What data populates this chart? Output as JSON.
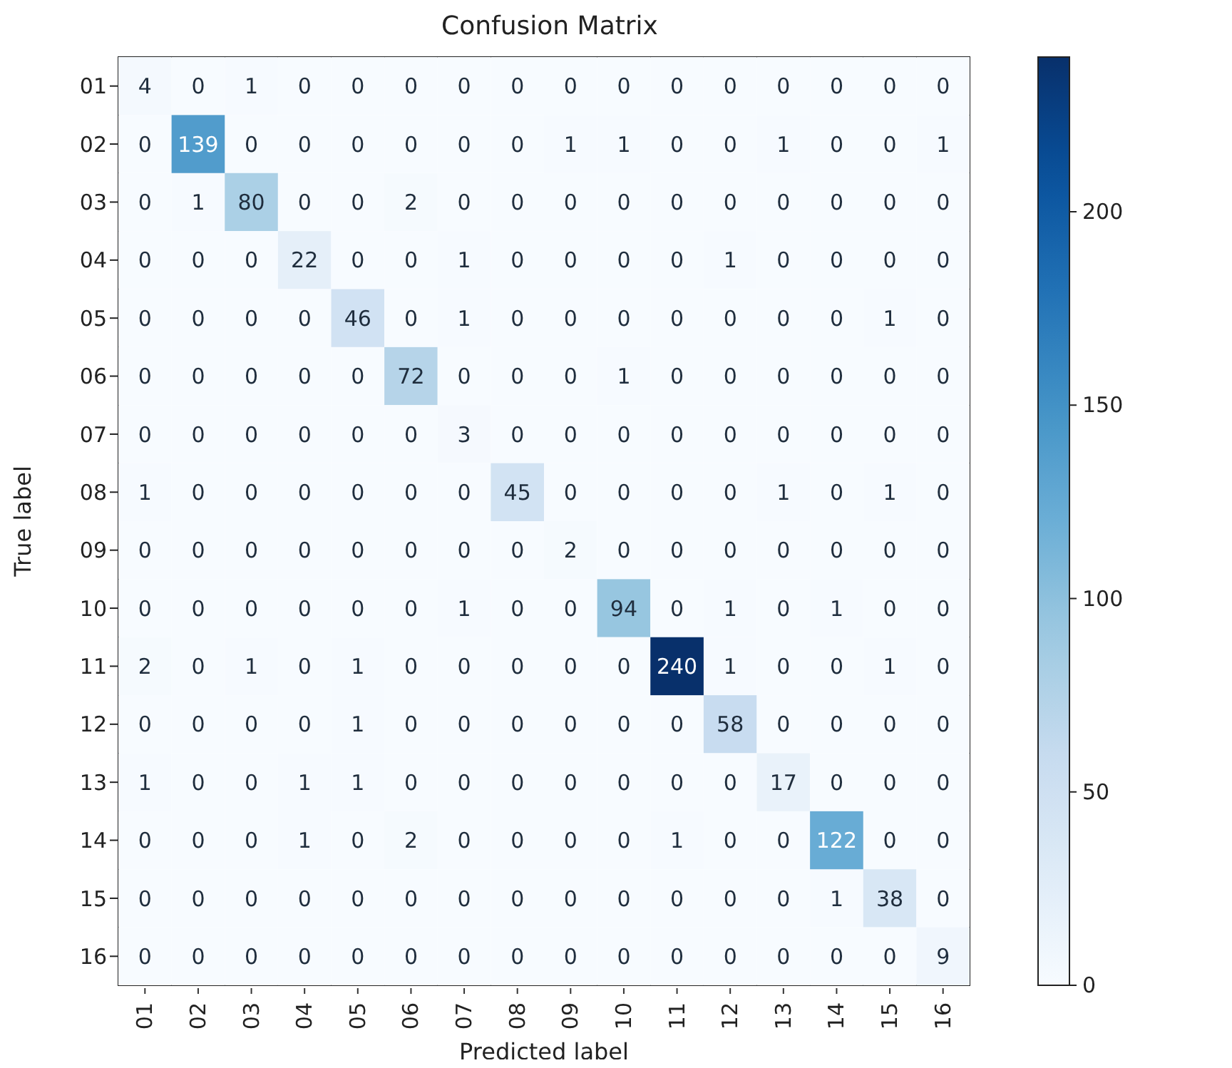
{
  "chart_data": {
    "type": "heatmap",
    "title": "Confusion Matrix",
    "xlabel": "Predicted label",
    "ylabel": "True label",
    "categories": [
      "01",
      "02",
      "03",
      "04",
      "05",
      "06",
      "07",
      "08",
      "09",
      "10",
      "11",
      "12",
      "13",
      "14",
      "15",
      "16"
    ],
    "y_categories": [
      "01",
      "02",
      "03",
      "04",
      "05",
      "06",
      "07",
      "08",
      "09",
      "10",
      "11",
      "12",
      "13",
      "14",
      "15",
      "16"
    ],
    "cells": [
      [
        4,
        0,
        1,
        0,
        0,
        0,
        0,
        0,
        0,
        0,
        0,
        0,
        0,
        0,
        0,
        0
      ],
      [
        0,
        139,
        0,
        0,
        0,
        0,
        0,
        0,
        1,
        1,
        0,
        0,
        1,
        0,
        0,
        1
      ],
      [
        0,
        1,
        80,
        0,
        0,
        2,
        0,
        0,
        0,
        0,
        0,
        0,
        0,
        0,
        0,
        0
      ],
      [
        0,
        0,
        0,
        22,
        0,
        0,
        1,
        0,
        0,
        0,
        0,
        1,
        0,
        0,
        0,
        0
      ],
      [
        0,
        0,
        0,
        0,
        46,
        0,
        1,
        0,
        0,
        0,
        0,
        0,
        0,
        0,
        1,
        0
      ],
      [
        0,
        0,
        0,
        0,
        0,
        72,
        0,
        0,
        0,
        1,
        0,
        0,
        0,
        0,
        0,
        0
      ],
      [
        0,
        0,
        0,
        0,
        0,
        0,
        3,
        0,
        0,
        0,
        0,
        0,
        0,
        0,
        0,
        0
      ],
      [
        1,
        0,
        0,
        0,
        0,
        0,
        0,
        45,
        0,
        0,
        0,
        0,
        1,
        0,
        1,
        0
      ],
      [
        0,
        0,
        0,
        0,
        0,
        0,
        0,
        0,
        2,
        0,
        0,
        0,
        0,
        0,
        0,
        0
      ],
      [
        0,
        0,
        0,
        0,
        0,
        0,
        1,
        0,
        0,
        94,
        0,
        1,
        0,
        1,
        0,
        0
      ],
      [
        2,
        0,
        1,
        0,
        1,
        0,
        0,
        0,
        0,
        0,
        240,
        1,
        0,
        0,
        1,
        0
      ],
      [
        0,
        0,
        0,
        0,
        1,
        0,
        0,
        0,
        0,
        0,
        0,
        58,
        0,
        0,
        0,
        0
      ],
      [
        1,
        0,
        0,
        1,
        1,
        0,
        0,
        0,
        0,
        0,
        0,
        0,
        17,
        0,
        0,
        0
      ],
      [
        0,
        0,
        0,
        1,
        0,
        2,
        0,
        0,
        0,
        0,
        1,
        0,
        0,
        122,
        0,
        0
      ],
      [
        0,
        0,
        0,
        0,
        0,
        0,
        0,
        0,
        0,
        0,
        0,
        0,
        0,
        1,
        38,
        0
      ],
      [
        0,
        0,
        0,
        0,
        0,
        0,
        0,
        0,
        0,
        0,
        0,
        0,
        0,
        0,
        0,
        9
      ]
    ],
    "clim": [
      0,
      240
    ],
    "cticks": [
      0,
      50,
      100,
      150,
      200
    ],
    "data_labels": true
  }
}
